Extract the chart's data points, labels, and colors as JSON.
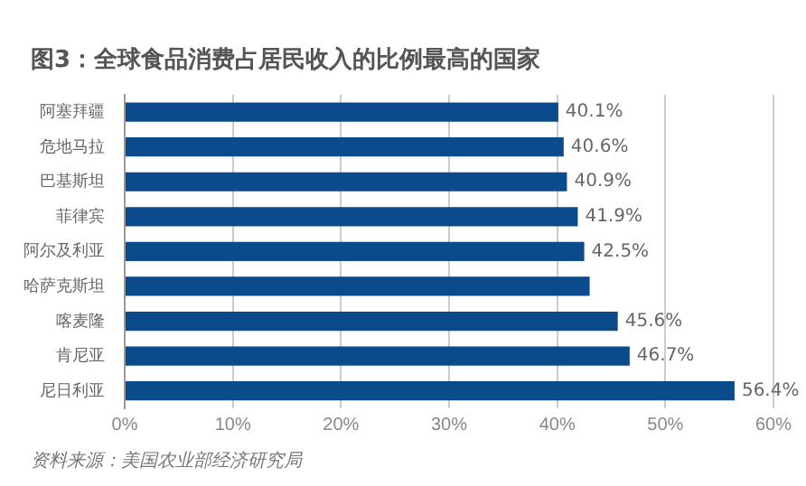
{
  "chart_data": {
    "type": "bar",
    "orientation": "horizontal",
    "title": "图3：全球食品消费占居民收入的比例最高的国家",
    "categories": [
      "阿塞拜疆",
      "危地马拉",
      "巴基斯坦",
      "菲律宾",
      "阿尔及利亚",
      "哈萨克斯坦",
      "喀麦隆",
      "肯尼亚",
      "尼日利亚"
    ],
    "values": [
      40.1,
      40.6,
      40.9,
      41.9,
      42.5,
      43.0,
      45.6,
      46.7,
      56.4
    ],
    "value_labels": [
      "40.1%",
      "40.6%",
      "40.9%",
      "41.9%",
      "42.5%",
      null,
      "45.6%",
      "46.7%",
      "56.4%"
    ],
    "color": "#0b4a8b",
    "xlim": [
      0,
      60
    ],
    "xticks": [
      {
        "value": 0,
        "label": "0%"
      },
      {
        "value": 10,
        "label": "10%"
      },
      {
        "value": 20,
        "label": "20%"
      },
      {
        "value": 30,
        "label": "30%"
      },
      {
        "value": 40,
        "label": "40%"
      },
      {
        "value": 50,
        "label": "50%"
      },
      {
        "value": 60,
        "label": "60%"
      }
    ],
    "grid": "x",
    "legend": false,
    "annotations": [
      "资料来源：美国农业部经济研究局"
    ]
  }
}
